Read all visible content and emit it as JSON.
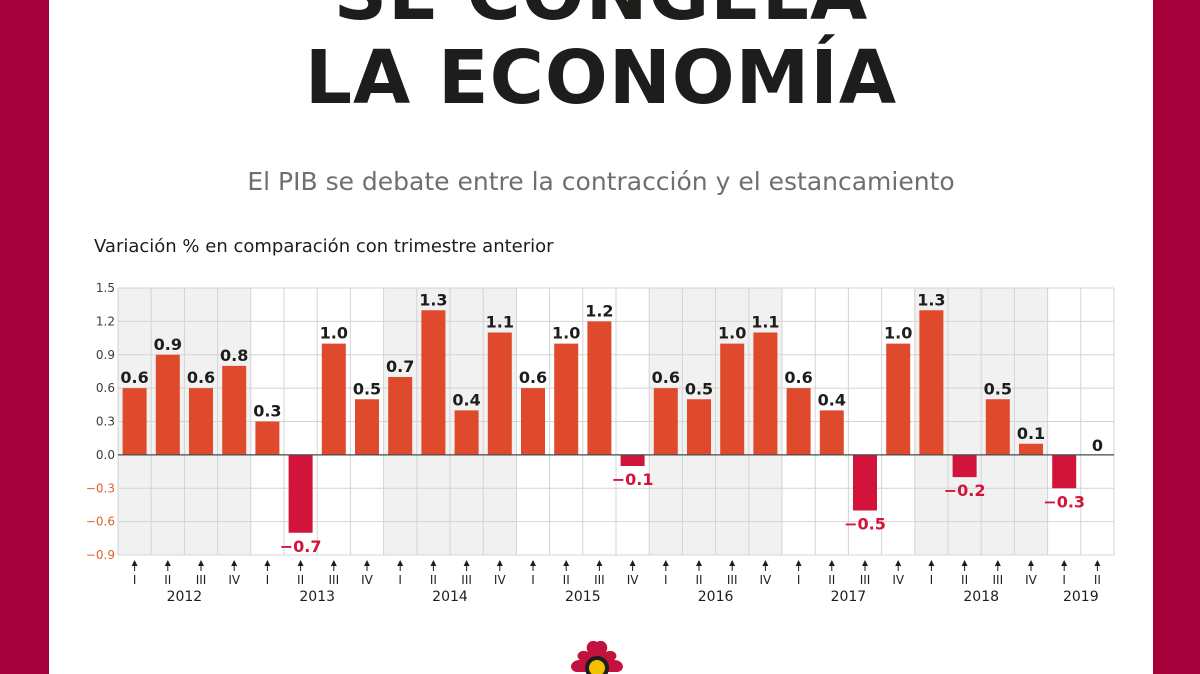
{
  "header": {
    "title_line1": "SE CONGELA",
    "title_line2": "LA ECONOMÍA",
    "subtitle": "El PIB se debate entre la contracción y el estancamiento",
    "axis_caption": "Variación % en comparación con trimestre anterior"
  },
  "colors": {
    "frame": "#a6003a",
    "positive_bar": "#e04a2c",
    "negative_bar": "#d2143a",
    "negative_label": "#d2143a",
    "negative_tick": "#e0622f",
    "shade": "#f1f1f1"
  },
  "chart_data": {
    "type": "bar",
    "title": "SE CONGELA LA ECONOMÍA",
    "subtitle": "El PIB se debate entre la contracción y el estancamiento",
    "ylabel": "Variación % en comparación con trimestre anterior",
    "ylim": [
      -0.9,
      1.5
    ],
    "yticks": [
      1.5,
      1.2,
      0.9,
      0.6,
      0.3,
      0.0,
      -0.3,
      -0.6,
      -0.9
    ],
    "ytick_labels": [
      "1.5",
      "1.2",
      "0.9",
      "0.6",
      "0.3",
      "0.0",
      "−0.3",
      "−0.6",
      "−0.9"
    ],
    "grid": true,
    "years": [
      {
        "label": "2012",
        "quarters": [
          "I",
          "II",
          "III",
          "IV"
        ],
        "values": [
          0.6,
          0.9,
          0.6,
          0.8
        ],
        "labels": [
          "0.6",
          "0.9",
          "0.6",
          "0.8"
        ],
        "shaded": true
      },
      {
        "label": "2013",
        "quarters": [
          "I",
          "II",
          "III",
          "IV"
        ],
        "values": [
          0.3,
          -0.7,
          1.0,
          0.5
        ],
        "labels": [
          "0.3",
          "−0.7",
          "1.0",
          "0.5"
        ],
        "shaded": false
      },
      {
        "label": "2014",
        "quarters": [
          "I",
          "II",
          "III",
          "IV"
        ],
        "values": [
          0.7,
          1.3,
          0.4,
          1.1
        ],
        "labels": [
          "0.7",
          "1.3",
          "0.4",
          "1.1"
        ],
        "shaded": true
      },
      {
        "label": "2015",
        "quarters": [
          "I",
          "II",
          "III",
          "IV"
        ],
        "values": [
          0.6,
          1.0,
          1.2,
          -0.1
        ],
        "labels": [
          "0.6",
          "1.0",
          "1.2",
          "−0.1"
        ],
        "shaded": false
      },
      {
        "label": "2016",
        "quarters": [
          "I",
          "II",
          "III",
          "IV"
        ],
        "values": [
          0.6,
          0.5,
          1.0,
          1.1
        ],
        "labels": [
          "0.6",
          "0.5",
          "1.0",
          "1.1"
        ],
        "shaded": true
      },
      {
        "label": "2017",
        "quarters": [
          "I",
          "II",
          "III",
          "IV"
        ],
        "values": [
          0.6,
          0.4,
          -0.5,
          1.0
        ],
        "labels": [
          "0.6",
          "0.4",
          "−0.5",
          "1.0"
        ],
        "shaded": false
      },
      {
        "label": "2018",
        "quarters": [
          "I",
          "II",
          "III",
          "IV"
        ],
        "values": [
          1.3,
          -0.2,
          0.5,
          0.1
        ],
        "labels": [
          "1.3",
          "−0.2",
          "0.5",
          "0.1"
        ],
        "shaded": true
      },
      {
        "label": "2019",
        "quarters": [
          "I",
          "II"
        ],
        "values": [
          -0.3,
          0
        ],
        "labels": [
          "−0.3",
          "0"
        ],
        "shaded": false
      }
    ]
  }
}
